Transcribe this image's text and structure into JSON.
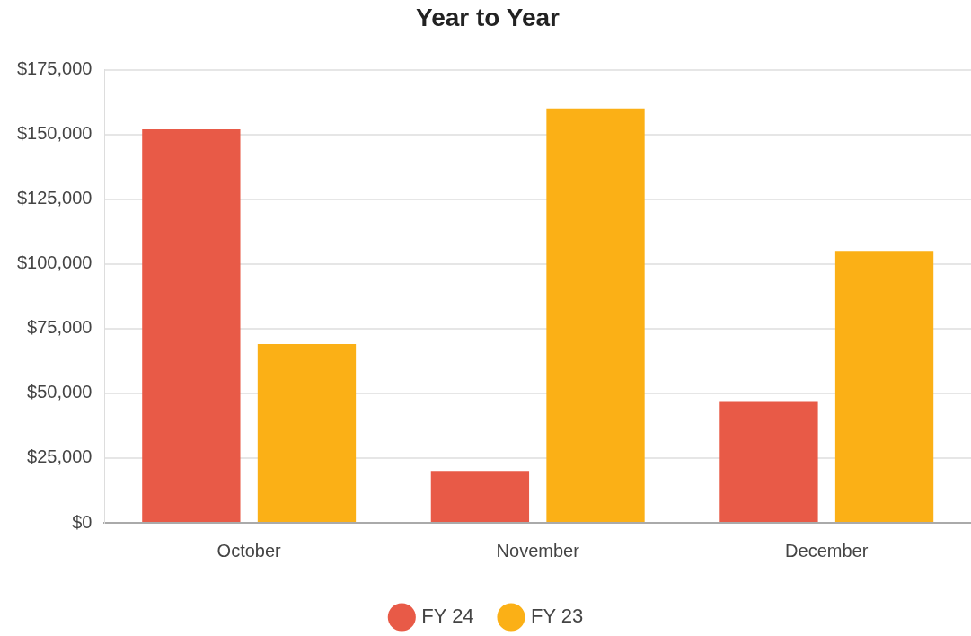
{
  "chart_data": {
    "type": "bar",
    "title": "Year to Year",
    "categories": [
      "October",
      "November",
      "December"
    ],
    "series": [
      {
        "name": "FY 24",
        "color": "#e85a47",
        "values": [
          152000,
          20000,
          47000
        ]
      },
      {
        "name": "FY 23",
        "color": "#fbb016",
        "values": [
          69000,
          160000,
          105000
        ]
      }
    ],
    "ylim": [
      0,
      175000
    ],
    "yticks": [
      {
        "value": 0,
        "label": "$0"
      },
      {
        "value": 25000,
        "label": "$25,000"
      },
      {
        "value": 50000,
        "label": "$50,000"
      },
      {
        "value": 75000,
        "label": "$75,000"
      },
      {
        "value": 100000,
        "label": "$100,000"
      },
      {
        "value": 125000,
        "label": "$125,000"
      },
      {
        "value": 150000,
        "label": "$150,000"
      },
      {
        "value": 175000,
        "label": "$175,000"
      }
    ],
    "grid": "y",
    "legend": "bottom"
  }
}
